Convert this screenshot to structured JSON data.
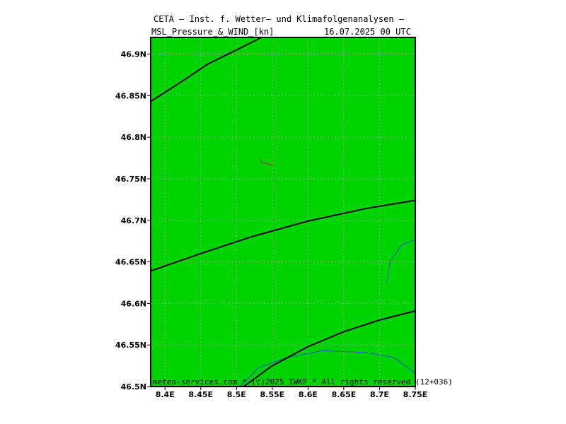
{
  "header": {
    "title": "CETA — Inst. f. Wetter— und Klimafolgenanalysen —",
    "subtitle": "MSL_Pressure_&_WIND_[kn]",
    "datetime": "16.07.2025 00 UTC"
  },
  "footer": {
    "credit": "meteo-services.com * (c)2025 IWKF * All rights reserved (12+036)"
  },
  "colors": {
    "land": "#00d400",
    "grid": "#a0a0a0",
    "isobar": "#000000",
    "river": "#2050d0",
    "wind_barb": "#c02060"
  },
  "map": {
    "lon_range": [
      8.38,
      8.75
    ],
    "lat_range": [
      46.5,
      46.92
    ],
    "lat_ticks": [
      {
        "value": 46.9,
        "label": "46.9N"
      },
      {
        "value": 46.85,
        "label": "46.85N"
      },
      {
        "value": 46.8,
        "label": "46.8N"
      },
      {
        "value": 46.75,
        "label": "46.75N"
      },
      {
        "value": 46.7,
        "label": "46.7N"
      },
      {
        "value": 46.65,
        "label": "46.65N"
      },
      {
        "value": 46.6,
        "label": "46.6N"
      },
      {
        "value": 46.55,
        "label": "46.55N"
      },
      {
        "value": 46.5,
        "label": "46.5N"
      }
    ],
    "lon_ticks": [
      {
        "value": 8.4,
        "label": "8.4E"
      },
      {
        "value": 8.45,
        "label": "8.45E"
      },
      {
        "value": 8.5,
        "label": "8.5E"
      },
      {
        "value": 8.55,
        "label": "8.55E"
      },
      {
        "value": 8.6,
        "label": "8.6E"
      },
      {
        "value": 8.65,
        "label": "8.65E"
      },
      {
        "value": 8.7,
        "label": "8.7E"
      },
      {
        "value": 8.75,
        "label": "8.75E"
      }
    ],
    "isobars": [
      [
        [
          8.38,
          46.843
        ],
        [
          8.42,
          46.865
        ],
        [
          8.46,
          46.888
        ],
        [
          8.5,
          46.905
        ],
        [
          8.535,
          46.92
        ]
      ],
      [
        [
          8.38,
          46.639
        ],
        [
          8.45,
          46.66
        ],
        [
          8.52,
          46.68
        ],
        [
          8.6,
          46.699
        ],
        [
          8.68,
          46.714
        ],
        [
          8.75,
          46.724
        ]
      ],
      [
        [
          8.51,
          46.5
        ],
        [
          8.55,
          46.525
        ],
        [
          8.6,
          46.548
        ],
        [
          8.65,
          46.566
        ],
        [
          8.7,
          46.58
        ],
        [
          8.75,
          46.591
        ]
      ]
    ],
    "rivers": [
      [
        [
          8.71,
          46.624
        ],
        [
          8.715,
          46.65
        ],
        [
          8.73,
          46.67
        ],
        [
          8.75,
          46.677
        ]
      ],
      [
        [
          8.505,
          46.5
        ],
        [
          8.53,
          46.522
        ],
        [
          8.57,
          46.535
        ],
        [
          8.62,
          46.543
        ],
        [
          8.68,
          46.541
        ],
        [
          8.72,
          46.535
        ],
        [
          8.75,
          46.516
        ]
      ]
    ],
    "wind_barb": [
      [
        8.534,
        46.774
      ],
      [
        8.535,
        46.77
      ],
      [
        8.551,
        46.766
      ]
    ]
  }
}
